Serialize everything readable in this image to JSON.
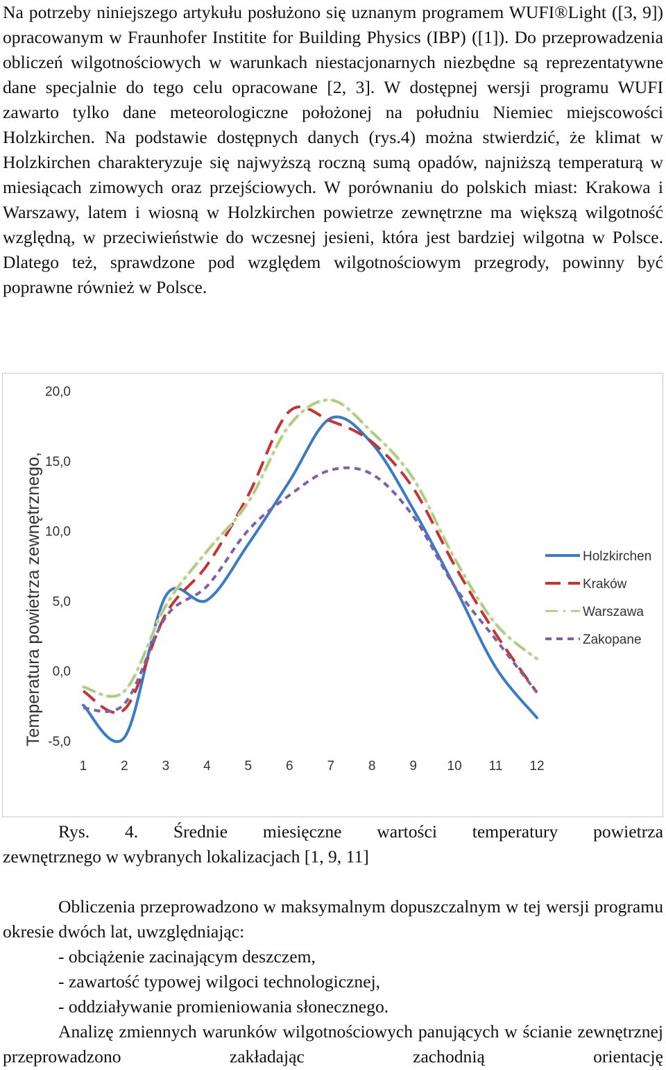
{
  "paragraph_1": "Na potrzeby niniejszego artykułu posłużono się uznanym programem WUFI®Light ([3, 9]) opracowanym w Fraunhofer Institite for Building Physics (IBP) ([1]). Do przeprowadzenia obliczeń wilgotnościowych w warunkach niestacjonarnych niezbędne są reprezentatywne dane specjalnie do tego celu opracowane [2, 3]. W dostępnej wersji programu WUFI zawarto tylko dane meteorologiczne położonej na południu Niemiec miejscowości Holzkirchen. Na podstawie dostępnych danych (rys.4) można stwierdzić, że klimat w Holzkirchen charakteryzuje się najwyższą roczną sumą opadów, najniższą temperaturą w miesiącach zimowych oraz przejściowych. W porównaniu do polskich miast: Krakowa i Warszawy, latem i wiosną w Holzkirchen powietrze zewnętrzne ma większą wilgotność względną, w przeciwieństwie do wczesnej jesieni, która jest bardziej wilgotna w Polsce. Dlatego też, sprawdzone pod względem wilgotnościowym przegrody, powinny być poprawne również w Polsce.",
  "caption": {
    "line1": "Rys. 4. Średnie miesięczne wartości temperatury powietrza",
    "line2": "zewnętrznego w wybranych lokalizacjach [1, 9, 11]"
  },
  "paragraph_2": "Obliczenia przeprowadzono w maksymalnym dopuszczalnym w tej wersji programu okresie dwóch lat, uwzględniając:",
  "list_items": [
    "- obciążenie zacinającym deszczem,",
    "- zawartość typowej wilgoci technologicznej,",
    "- oddziaływanie promieniowania słonecznego."
  ],
  "paragraph_3": "Analizę zmiennych warunków wilgotnościowych panujących w ścianie zewnętrznej przeprowadzono zakładając zachodnią orientację",
  "chart_data": {
    "type": "line",
    "title": "",
    "xlabel": "",
    "ylabel": "Temperatura powietrza zewnętrznego,",
    "x": [
      1,
      2,
      3,
      4,
      5,
      6,
      7,
      8,
      9,
      10,
      11,
      12
    ],
    "x_tick_labels": [
      "1",
      "2",
      "3",
      "4",
      "5",
      "6",
      "7",
      "8",
      "9",
      "10",
      "11",
      "12"
    ],
    "y_tick_labels": [
      "-5,0",
      "0,0",
      "5,0",
      "10,0",
      "15,0",
      "20,0"
    ],
    "y_ticks": [
      -5,
      0,
      5,
      10,
      15,
      20
    ],
    "ylim": [
      -5,
      20
    ],
    "xlim": [
      1,
      12
    ],
    "grid": false,
    "legend_position": "right",
    "series": [
      {
        "name": "Holzkirchen",
        "color": "#3a7bc8",
        "dash": "solid",
        "values": [
          -2.5,
          -4.8,
          5.3,
          5.0,
          9.0,
          13.5,
          18.0,
          16.2,
          11.5,
          6.0,
          0.2,
          -3.4
        ]
      },
      {
        "name": "Kraków",
        "color": "#c83232",
        "dash": "long",
        "values": [
          -1.5,
          -2.8,
          4.0,
          7.5,
          12.5,
          18.5,
          17.8,
          16.3,
          13.0,
          7.5,
          2.6,
          -1.6
        ]
      },
      {
        "name": "Warszawa",
        "color": "#a8c878",
        "dash": "dashdot",
        "values": [
          -1.2,
          -1.5,
          4.6,
          8.5,
          12.0,
          17.5,
          19.3,
          17.0,
          13.7,
          8.0,
          3.3,
          0.8
        ]
      },
      {
        "name": "Zakopane",
        "color": "#8060a8",
        "dash": "short",
        "values": [
          -2.7,
          -2.4,
          3.8,
          6.0,
          10.0,
          12.5,
          14.3,
          14.0,
          11.0,
          6.0,
          2.2,
          -1.6
        ]
      }
    ]
  }
}
